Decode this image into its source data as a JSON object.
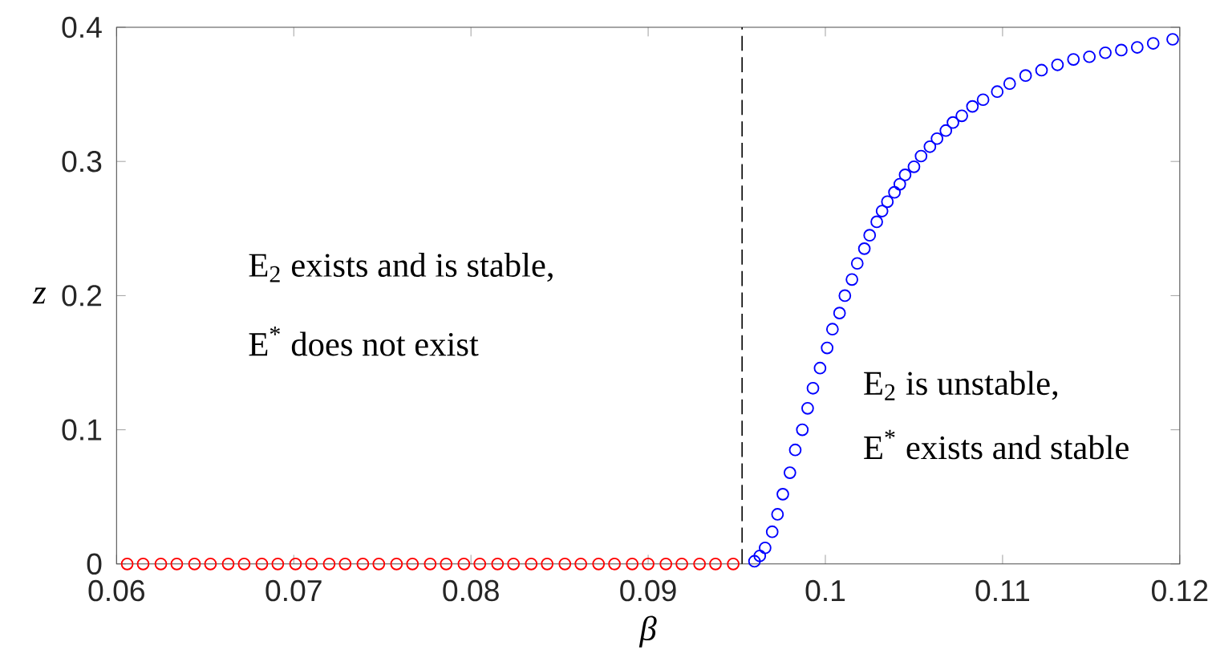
{
  "chart_data": {
    "type": "scatter",
    "xlabel": "β",
    "ylabel": "z",
    "marker": "circle",
    "grid": false,
    "xlim": [
      0.06,
      0.12
    ],
    "ylim": [
      0,
      0.4
    ],
    "xticks": [
      0.06,
      0.07,
      0.08,
      0.09,
      0.1,
      0.11,
      0.12
    ],
    "yticks": [
      0,
      0.1,
      0.2,
      0.3,
      0.4
    ],
    "ref_lines": [
      {
        "axis": "x",
        "value": 0.0953,
        "color": "#000000",
        "line_style": "dashed"
      }
    ],
    "annotations": [
      "E$_{2}$ exists and is stable,",
      "E$^{*}$ does not exist",
      "E$_{2}$ is unstable,",
      "E$^{*}$ exists and stable"
    ],
    "series": [
      {
        "color": "#ff0000",
        "x": [
          0.0606,
          0.0615,
          0.0625,
          0.0634,
          0.0644,
          0.0653,
          0.0663,
          0.0672,
          0.0682,
          0.0691,
          0.0701,
          0.071,
          0.072,
          0.0729,
          0.0739,
          0.0748,
          0.0758,
          0.0767,
          0.0777,
          0.0786,
          0.0796,
          0.0805,
          0.0815,
          0.0824,
          0.0834,
          0.0843,
          0.0853,
          0.0862,
          0.0872,
          0.0881,
          0.0891,
          0.09,
          0.091,
          0.0919,
          0.0929,
          0.0938,
          0.0948
        ],
        "values": [
          0,
          0,
          0,
          0,
          0,
          0,
          0,
          0,
          0,
          0,
          0,
          0,
          0,
          0,
          0,
          0,
          0,
          0,
          0,
          0,
          0,
          0,
          0,
          0,
          0,
          0,
          0,
          0,
          0,
          0,
          0,
          0,
          0,
          0,
          0,
          0,
          0
        ]
      },
      {
        "color": "#0000ff",
        "x": [
          0.096,
          0.0963,
          0.0966,
          0.097,
          0.0973,
          0.0976,
          0.098,
          0.0983,
          0.0987,
          0.099,
          0.0993,
          0.0997,
          0.1001,
          0.1004,
          0.1008,
          0.1011,
          0.1015,
          0.1018,
          0.1022,
          0.1025,
          0.1029,
          0.1032,
          0.1035,
          0.1039,
          0.1042,
          0.1045,
          0.105,
          0.1054,
          0.1059,
          0.1063,
          0.1068,
          0.1072,
          0.1077,
          0.1083,
          0.1089,
          0.1097,
          0.1104,
          0.1113,
          0.1122,
          0.1131,
          0.114,
          0.1149,
          0.1158,
          0.1167,
          0.1176,
          0.1185,
          0.1196
        ],
        "values": [
          0.002,
          0.006,
          0.012,
          0.024,
          0.037,
          0.052,
          0.068,
          0.085,
          0.1,
          0.116,
          0.131,
          0.146,
          0.161,
          0.175,
          0.187,
          0.2,
          0.212,
          0.224,
          0.235,
          0.245,
          0.255,
          0.263,
          0.27,
          0.277,
          0.283,
          0.29,
          0.296,
          0.304,
          0.311,
          0.317,
          0.323,
          0.329,
          0.334,
          0.341,
          0.346,
          0.352,
          0.358,
          0.364,
          0.368,
          0.372,
          0.376,
          0.378,
          0.381,
          0.383,
          0.385,
          0.388,
          0.391
        ]
      }
    ]
  }
}
